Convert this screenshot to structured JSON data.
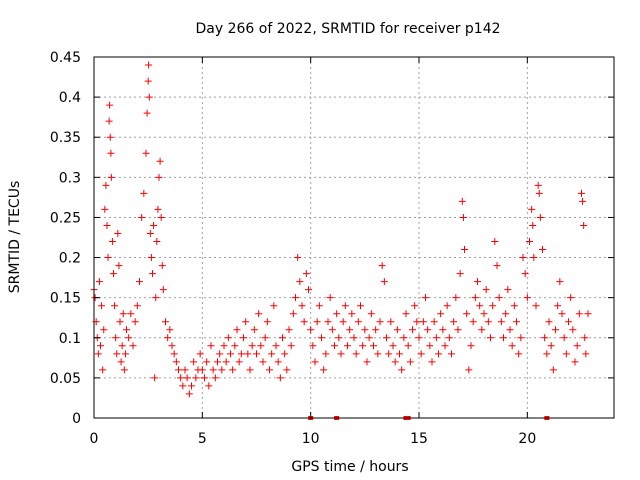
{
  "chart_data": {
    "type": "scatter",
    "title": "Day 266 of 2022, SRMTID for receiver p142",
    "xlabel": "GPS time / hours",
    "ylabel": "SRMTID / TECUs",
    "xlim": [
      0,
      24
    ],
    "ylim": [
      0,
      0.45
    ],
    "grid": true,
    "xticks": [
      0,
      5,
      10,
      15,
      20
    ],
    "xtick_labels": [
      "0",
      "5",
      "10",
      "15",
      "20"
    ],
    "yticks": [
      0,
      0.05,
      0.1,
      0.15,
      0.2,
      0.25,
      0.3,
      0.35,
      0.4,
      0.45
    ],
    "ytick_labels": [
      "0",
      "0.05",
      "0.1",
      "0.15",
      "0.2",
      "0.25",
      "0.3",
      "0.35",
      "0.4",
      "0.45"
    ],
    "marker": "+",
    "series_color": "#ff0000",
    "series": [
      {
        "name": "SRMTID",
        "points": [
          [
            0.0,
            0.16
          ],
          [
            0.05,
            0.15
          ],
          [
            0.1,
            0.12
          ],
          [
            0.15,
            0.1
          ],
          [
            0.2,
            0.08
          ],
          [
            0.25,
            0.17
          ],
          [
            0.3,
            0.09
          ],
          [
            0.35,
            0.14
          ],
          [
            0.4,
            0.06
          ],
          [
            0.45,
            0.11
          ],
          [
            0.5,
            0.26
          ],
          [
            0.55,
            0.29
          ],
          [
            0.6,
            0.24
          ],
          [
            0.65,
            0.2
          ],
          [
            0.7,
            0.37
          ],
          [
            0.72,
            0.39
          ],
          [
            0.75,
            0.35
          ],
          [
            0.78,
            0.33
          ],
          [
            0.8,
            0.3
          ],
          [
            0.85,
            0.22
          ],
          [
            0.9,
            0.18
          ],
          [
            0.95,
            0.14
          ],
          [
            1.0,
            0.1
          ],
          [
            1.05,
            0.08
          ],
          [
            1.1,
            0.23
          ],
          [
            1.15,
            0.19
          ],
          [
            1.2,
            0.12
          ],
          [
            1.25,
            0.07
          ],
          [
            1.3,
            0.09
          ],
          [
            1.35,
            0.13
          ],
          [
            1.4,
            0.06
          ],
          [
            1.45,
            0.08
          ],
          [
            1.5,
            0.11
          ],
          [
            1.6,
            0.1
          ],
          [
            1.7,
            0.13
          ],
          [
            1.8,
            0.09
          ],
          [
            1.9,
            0.12
          ],
          [
            2.0,
            0.14
          ],
          [
            2.1,
            0.17
          ],
          [
            2.2,
            0.25
          ],
          [
            2.3,
            0.28
          ],
          [
            2.4,
            0.33
          ],
          [
            2.45,
            0.38
          ],
          [
            2.5,
            0.42
          ],
          [
            2.52,
            0.44
          ],
          [
            2.55,
            0.4
          ],
          [
            2.6,
            0.23
          ],
          [
            2.65,
            0.2
          ],
          [
            2.7,
            0.18
          ],
          [
            2.75,
            0.24
          ],
          [
            2.8,
            0.05
          ],
          [
            2.85,
            0.15
          ],
          [
            2.9,
            0.22
          ],
          [
            2.95,
            0.26
          ],
          [
            3.0,
            0.3
          ],
          [
            3.05,
            0.32
          ],
          [
            3.1,
            0.25
          ],
          [
            3.15,
            0.19
          ],
          [
            3.2,
            0.16
          ],
          [
            3.3,
            0.12
          ],
          [
            3.4,
            0.1
          ],
          [
            3.5,
            0.11
          ],
          [
            3.6,
            0.09
          ],
          [
            3.7,
            0.08
          ],
          [
            3.8,
            0.07
          ],
          [
            3.9,
            0.06
          ],
          [
            4.0,
            0.05
          ],
          [
            4.1,
            0.04
          ],
          [
            4.2,
            0.06
          ],
          [
            4.3,
            0.05
          ],
          [
            4.4,
            0.03
          ],
          [
            4.5,
            0.04
          ],
          [
            4.6,
            0.07
          ],
          [
            4.7,
            0.05
          ],
          [
            4.8,
            0.06
          ],
          [
            4.9,
            0.08
          ],
          [
            5.0,
            0.06
          ],
          [
            5.1,
            0.05
          ],
          [
            5.2,
            0.07
          ],
          [
            5.3,
            0.04
          ],
          [
            5.4,
            0.09
          ],
          [
            5.5,
            0.06
          ],
          [
            5.6,
            0.05
          ],
          [
            5.7,
            0.07
          ],
          [
            5.8,
            0.08
          ],
          [
            5.9,
            0.06
          ],
          [
            6.0,
            0.09
          ],
          [
            6.1,
            0.07
          ],
          [
            6.2,
            0.1
          ],
          [
            6.3,
            0.08
          ],
          [
            6.4,
            0.06
          ],
          [
            6.5,
            0.09
          ],
          [
            6.6,
            0.11
          ],
          [
            6.7,
            0.07
          ],
          [
            6.8,
            0.08
          ],
          [
            6.9,
            0.1
          ],
          [
            7.0,
            0.12
          ],
          [
            7.1,
            0.08
          ],
          [
            7.2,
            0.06
          ],
          [
            7.3,
            0.09
          ],
          [
            7.4,
            0.11
          ],
          [
            7.5,
            0.08
          ],
          [
            7.6,
            0.13
          ],
          [
            7.7,
            0.09
          ],
          [
            7.8,
            0.07
          ],
          [
            7.9,
            0.1
          ],
          [
            8.0,
            0.12
          ],
          [
            8.1,
            0.06
          ],
          [
            8.2,
            0.08
          ],
          [
            8.3,
            0.14
          ],
          [
            8.4,
            0.09
          ],
          [
            8.5,
            0.07
          ],
          [
            8.6,
            0.05
          ],
          [
            8.7,
            0.1
          ],
          [
            8.8,
            0.08
          ],
          [
            8.9,
            0.06
          ],
          [
            9.0,
            0.11
          ],
          [
            9.1,
            0.09
          ],
          [
            9.2,
            0.13
          ],
          [
            9.3,
            0.15
          ],
          [
            9.4,
            0.2
          ],
          [
            9.5,
            0.17
          ],
          [
            9.6,
            0.14
          ],
          [
            9.7,
            0.12
          ],
          [
            9.8,
            0.18
          ],
          [
            9.9,
            0.16
          ],
          [
            10.0,
            0.11
          ],
          [
            10.1,
            0.09
          ],
          [
            10.2,
            0.07
          ],
          [
            10.3,
            0.12
          ],
          [
            10.4,
            0.14
          ],
          [
            10.5,
            0.1
          ],
          [
            10.6,
            0.06
          ],
          [
            10.7,
            0.08
          ],
          [
            10.8,
            0.12
          ],
          [
            10.9,
            0.15
          ],
          [
            11.0,
            0.11
          ],
          [
            11.1,
            0.09
          ],
          [
            11.2,
            0.13
          ],
          [
            11.3,
            0.1
          ],
          [
            11.4,
            0.08
          ],
          [
            11.5,
            0.12
          ],
          [
            11.6,
            0.14
          ],
          [
            11.7,
            0.09
          ],
          [
            11.8,
            0.11
          ],
          [
            11.9,
            0.13
          ],
          [
            12.0,
            0.1
          ],
          [
            12.1,
            0.08
          ],
          [
            12.2,
            0.12
          ],
          [
            12.3,
            0.14
          ],
          [
            12.4,
            0.09
          ],
          [
            12.5,
            0.11
          ],
          [
            12.6,
            0.07
          ],
          [
            12.7,
            0.1
          ],
          [
            12.8,
            0.13
          ],
          [
            12.9,
            0.09
          ],
          [
            13.0,
            0.11
          ],
          [
            13.1,
            0.08
          ],
          [
            13.2,
            0.12
          ],
          [
            13.3,
            0.19
          ],
          [
            13.4,
            0.17
          ],
          [
            13.5,
            0.1
          ],
          [
            13.6,
            0.08
          ],
          [
            13.7,
            0.12
          ],
          [
            13.8,
            0.09
          ],
          [
            13.9,
            0.07
          ],
          [
            14.0,
            0.11
          ],
          [
            14.1,
            0.08
          ],
          [
            14.2,
            0.06
          ],
          [
            14.3,
            0.1
          ],
          [
            14.4,
            0.13
          ],
          [
            14.5,
            0.09
          ],
          [
            14.6,
            0.07
          ],
          [
            14.7,
            0.11
          ],
          [
            14.8,
            0.14
          ],
          [
            14.9,
            0.12
          ],
          [
            15.0,
            0.1
          ],
          [
            15.1,
            0.08
          ],
          [
            15.2,
            0.12
          ],
          [
            15.3,
            0.15
          ],
          [
            15.4,
            0.11
          ],
          [
            15.5,
            0.09
          ],
          [
            15.6,
            0.07
          ],
          [
            15.7,
            0.12
          ],
          [
            15.8,
            0.1
          ],
          [
            15.9,
            0.08
          ],
          [
            16.0,
            0.13
          ],
          [
            16.1,
            0.11
          ],
          [
            16.2,
            0.09
          ],
          [
            16.3,
            0.14
          ],
          [
            16.4,
            0.1
          ],
          [
            16.5,
            0.08
          ],
          [
            16.6,
            0.12
          ],
          [
            16.7,
            0.15
          ],
          [
            16.8,
            0.11
          ],
          [
            16.9,
            0.18
          ],
          [
            17.0,
            0.27
          ],
          [
            17.05,
            0.25
          ],
          [
            17.1,
            0.21
          ],
          [
            17.2,
            0.13
          ],
          [
            17.3,
            0.06
          ],
          [
            17.4,
            0.09
          ],
          [
            17.5,
            0.12
          ],
          [
            17.6,
            0.15
          ],
          [
            17.7,
            0.17
          ],
          [
            17.8,
            0.14
          ],
          [
            17.9,
            0.11
          ],
          [
            18.0,
            0.13
          ],
          [
            18.1,
            0.16
          ],
          [
            18.2,
            0.12
          ],
          [
            18.3,
            0.1
          ],
          [
            18.4,
            0.14
          ],
          [
            18.5,
            0.22
          ],
          [
            18.6,
            0.19
          ],
          [
            18.7,
            0.15
          ],
          [
            18.8,
            0.12
          ],
          [
            18.9,
            0.1
          ],
          [
            19.0,
            0.13
          ],
          [
            19.1,
            0.16
          ],
          [
            19.2,
            0.11
          ],
          [
            19.3,
            0.09
          ],
          [
            19.4,
            0.14
          ],
          [
            19.5,
            0.12
          ],
          [
            19.6,
            0.08
          ],
          [
            19.7,
            0.1
          ],
          [
            19.8,
            0.2
          ],
          [
            19.9,
            0.18
          ],
          [
            20.0,
            0.15
          ],
          [
            20.1,
            0.22
          ],
          [
            20.2,
            0.26
          ],
          [
            20.25,
            0.24
          ],
          [
            20.3,
            0.2
          ],
          [
            20.4,
            0.14
          ],
          [
            20.5,
            0.29
          ],
          [
            20.55,
            0.28
          ],
          [
            20.6,
            0.25
          ],
          [
            20.7,
            0.21
          ],
          [
            20.8,
            0.1
          ],
          [
            20.9,
            0.08
          ],
          [
            21.0,
            0.12
          ],
          [
            21.1,
            0.09
          ],
          [
            21.2,
            0.06
          ],
          [
            21.3,
            0.11
          ],
          [
            21.4,
            0.14
          ],
          [
            21.5,
            0.17
          ],
          [
            21.6,
            0.13
          ],
          [
            21.7,
            0.1
          ],
          [
            21.8,
            0.08
          ],
          [
            21.9,
            0.12
          ],
          [
            22.0,
            0.15
          ],
          [
            22.1,
            0.11
          ],
          [
            22.2,
            0.07
          ],
          [
            22.3,
            0.09
          ],
          [
            22.4,
            0.13
          ],
          [
            22.5,
            0.28
          ],
          [
            22.55,
            0.27
          ],
          [
            22.6,
            0.24
          ],
          [
            22.65,
            0.1
          ],
          [
            22.7,
            0.08
          ],
          [
            22.8,
            0.13
          ]
        ]
      }
    ],
    "baseline_markers_x": [
      10.0,
      11.2,
      14.4,
      14.5,
      20.9
    ]
  }
}
